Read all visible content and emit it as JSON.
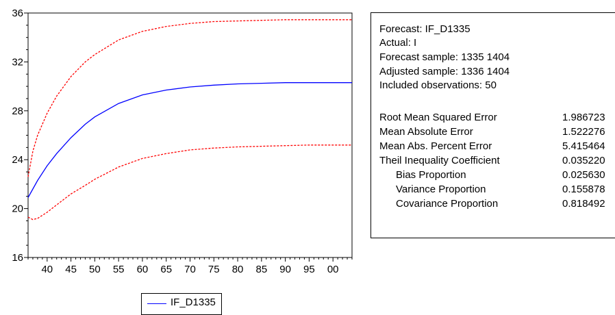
{
  "chart_data": {
    "type": "line",
    "x_tick_labels": [
      "40",
      "45",
      "50",
      "55",
      "60",
      "65",
      "70",
      "75",
      "80",
      "85",
      "90",
      "95",
      "00"
    ],
    "x_tick_values": [
      1340,
      1345,
      1350,
      1355,
      1360,
      1365,
      1370,
      1375,
      1380,
      1385,
      1390,
      1395,
      1400
    ],
    "xlim": [
      1336,
      1404
    ],
    "ylim": [
      16,
      36
    ],
    "y_ticks": [
      16,
      20,
      24,
      28,
      32,
      36
    ],
    "grid": false,
    "legend_position": "bottom-left",
    "series": [
      {
        "name": "IF_D1335",
        "color": "#0000ff",
        "style": "solid",
        "x": [
          1336,
          1338,
          1340,
          1342,
          1345,
          1348,
          1350,
          1355,
          1360,
          1365,
          1370,
          1375,
          1380,
          1385,
          1390,
          1395,
          1400,
          1404
        ],
        "y": [
          20.9,
          22.3,
          23.5,
          24.5,
          25.8,
          26.9,
          27.5,
          28.6,
          29.3,
          29.7,
          29.95,
          30.1,
          30.2,
          30.25,
          30.3,
          30.3,
          30.3,
          30.3
        ]
      },
      {
        "color": "#ff0000",
        "style": "dashed",
        "x": [
          1336,
          1337,
          1338,
          1340,
          1342,
          1345,
          1348,
          1350,
          1355,
          1360,
          1365,
          1370,
          1375,
          1380,
          1385,
          1390,
          1395,
          1400,
          1404
        ],
        "y": [
          22.6,
          24.7,
          26.0,
          27.8,
          29.2,
          30.8,
          32.0,
          32.6,
          33.8,
          34.5,
          34.9,
          35.15,
          35.3,
          35.35,
          35.4,
          35.45,
          35.45,
          35.45,
          35.45
        ]
      },
      {
        "color": "#ff0000",
        "style": "dashed",
        "x": [
          1336,
          1337,
          1338,
          1340,
          1342,
          1345,
          1348,
          1350,
          1355,
          1360,
          1365,
          1370,
          1375,
          1380,
          1385,
          1390,
          1395,
          1400,
          1404
        ],
        "y": [
          19.3,
          19.1,
          19.2,
          19.7,
          20.3,
          21.2,
          21.9,
          22.4,
          23.4,
          24.1,
          24.5,
          24.8,
          24.95,
          25.05,
          25.1,
          25.15,
          25.2,
          25.2,
          25.2
        ]
      }
    ]
  },
  "stats": {
    "header_lines": [
      "Forecast: IF_D1335",
      "Actual: I",
      "Forecast sample: 1335 1404",
      "Adjusted sample: 1336 1404",
      "Included observations: 50"
    ],
    "rows": [
      {
        "label": "Root Mean Squared Error",
        "value": "1.986723",
        "indent": false
      },
      {
        "label": "Mean Absolute Error",
        "value": "1.522276",
        "indent": false
      },
      {
        "label": "Mean Abs. Percent Error",
        "value": "5.415464",
        "indent": false
      },
      {
        "label": "Theil Inequality Coefficient",
        "value": "0.035220",
        "indent": false
      },
      {
        "label": "Bias Proportion",
        "value": "0.025630",
        "indent": true
      },
      {
        "label": "Variance Proportion",
        "value": "0.155878",
        "indent": true
      },
      {
        "label": "Covariance Proportion",
        "value": "0.818492",
        "indent": true
      }
    ]
  },
  "legend": {
    "label": "IF_D1335"
  }
}
